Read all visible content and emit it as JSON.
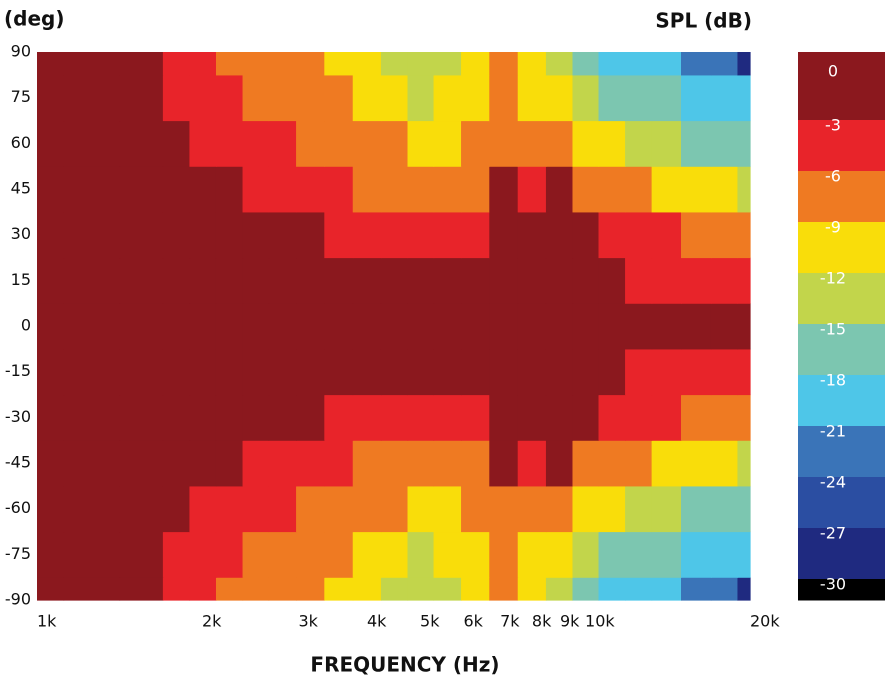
{
  "chart_data": {
    "type": "contour",
    "y_label": "(deg)",
    "x_label": "FREQUENCY (Hz)",
    "xscale": "log",
    "xlim": [
      1000,
      20000
    ],
    "ylim": [
      -90,
      90
    ],
    "xticks": [
      {
        "value": 1000,
        "label": "1k"
      },
      {
        "value": 2000,
        "label": "2k"
      },
      {
        "value": 3000,
        "label": "3k"
      },
      {
        "value": 4000,
        "label": "4k"
      },
      {
        "value": 5000,
        "label": "5k"
      },
      {
        "value": 6000,
        "label": "6k"
      },
      {
        "value": 7000,
        "label": "7k"
      },
      {
        "value": 8000,
        "label": "8k"
      },
      {
        "value": 9000,
        "label": "9k"
      },
      {
        "value": 10000,
        "label": "10k"
      },
      {
        "value": 20000,
        "label": "20k"
      }
    ],
    "yticks": [
      90,
      75,
      60,
      45,
      30,
      15,
      0,
      -15,
      -30,
      -45,
      -60,
      -75,
      -90
    ],
    "x": [
      1000,
      1250,
      1600,
      1800,
      2000,
      2250,
      2500,
      2800,
      3150,
      3550,
      4000,
      4500,
      5000,
      5600,
      6300,
      7100,
      8000,
      9000,
      10000,
      11200,
      12500,
      14000,
      16000,
      18000,
      20000
    ],
    "y": [
      -90,
      -75,
      -60,
      -45,
      -30,
      -15,
      0,
      15,
      30,
      45,
      60,
      75,
      90
    ],
    "z": [
      [
        -2.5,
        -2.7,
        -2.9,
        -3.5,
        -5.5,
        -6.2,
        -7.5,
        -8.5,
        -8.8,
        -9.5,
        -10.5,
        -12.5,
        -13.5,
        -12.5,
        -10.5,
        -8,
        -11,
        -14.5,
        -16,
        -18.3,
        -18.8,
        -19.5,
        -21.2,
        -23,
        -27.5
      ],
      [
        -2,
        -2.2,
        -2.5,
        -3.2,
        -4.5,
        -5,
        -6.1,
        -7,
        -8,
        -8.6,
        -9.5,
        -11,
        -12.5,
        -11.8,
        -9.8,
        -7.5,
        -9.2,
        -10.8,
        -13.5,
        -15.5,
        -16.5,
        -17.5,
        -19.5,
        -19.8,
        -20.5
      ],
      [
        -1.5,
        -1.7,
        -2,
        -2.8,
        -3.5,
        -4,
        -4.5,
        -5.2,
        -6.2,
        -6.8,
        -7.8,
        -8.8,
        -10.5,
        -10,
        -8.6,
        -6.2,
        -6.5,
        -6.3,
        -10,
        -11,
        -12,
        -13.5,
        -15.2,
        -16,
        -16.5
      ],
      [
        -1,
        -1.2,
        -1.4,
        -1.8,
        -2,
        -2.5,
        -3.1,
        -3.6,
        -4,
        -4.8,
        -6.2,
        -6.5,
        -8,
        -7.8,
        -6.5,
        -2.9,
        -3.3,
        -2.9,
        -6.1,
        -6.8,
        -7.8,
        -9,
        -10,
        -10.8,
        -12.2
      ],
      [
        -0.6,
        -0.7,
        -0.8,
        -1,
        -1.2,
        -1.4,
        -1.6,
        -2,
        -2.5,
        -3.1,
        -3.8,
        -4.2,
        -5.5,
        -5.2,
        -3.8,
        -1.8,
        -2,
        -1.8,
        -2.5,
        -3.3,
        -5,
        -5.5,
        -6.1,
        -6.5,
        -7.5
      ],
      [
        -0.3,
        -0.3,
        -0.4,
        -0.5,
        -0.5,
        -0.6,
        -0.7,
        -0.8,
        -1,
        -1.2,
        -1.5,
        -1.8,
        -2,
        -2,
        -1.5,
        -0.8,
        -0.9,
        -0.8,
        -1,
        -1.2,
        -3.1,
        -3.3,
        -3.5,
        -3.4,
        -3.1
      ],
      [
        0,
        0,
        0,
        0,
        0,
        0,
        0,
        0,
        0,
        0,
        0,
        0,
        0,
        0,
        0,
        0,
        0,
        0,
        0,
        0,
        0,
        0,
        0,
        0,
        0
      ],
      [
        -0.3,
        -0.3,
        -0.4,
        -0.5,
        -0.5,
        -0.6,
        -0.7,
        -0.8,
        -1,
        -1.2,
        -1.5,
        -1.8,
        -2,
        -2,
        -1.5,
        -0.8,
        -0.9,
        -0.8,
        -1,
        -1.2,
        -3.1,
        -3.3,
        -3.5,
        -3.4,
        -3.1
      ],
      [
        -0.6,
        -0.7,
        -0.8,
        -1,
        -1.2,
        -1.4,
        -1.6,
        -2,
        -2.5,
        -3.1,
        -3.8,
        -4.2,
        -5.5,
        -5.2,
        -3.8,
        -1.8,
        -2,
        -1.8,
        -2.5,
        -3.3,
        -5,
        -5.5,
        -6.1,
        -6.5,
        -7.5
      ],
      [
        -1,
        -1.2,
        -1.4,
        -1.8,
        -2,
        -2.5,
        -3.1,
        -3.6,
        -4,
        -4.8,
        -6.2,
        -6.5,
        -8,
        -7.8,
        -6.5,
        -2.9,
        -3.3,
        -2.9,
        -6.1,
        -6.8,
        -7.8,
        -9,
        -10,
        -10.8,
        -12.2
      ],
      [
        -1.5,
        -1.7,
        -2,
        -2.8,
        -3.5,
        -4,
        -4.5,
        -5.2,
        -6.2,
        -6.8,
        -7.8,
        -8.8,
        -10.5,
        -10,
        -8.6,
        -6.2,
        -6.5,
        -6.3,
        -10,
        -11,
        -12,
        -13.5,
        -15.2,
        -16,
        -16.5
      ],
      [
        -2,
        -2.2,
        -2.5,
        -3.2,
        -4.5,
        -5,
        -6.1,
        -7,
        -8,
        -8.6,
        -9.5,
        -11,
        -12.5,
        -11.8,
        -9.8,
        -7.5,
        -9.2,
        -10.8,
        -13.5,
        -15.5,
        -16.5,
        -17.5,
        -19.5,
        -19.8,
        -20.5
      ],
      [
        -2.5,
        -2.7,
        -2.9,
        -3.5,
        -5.5,
        -6.2,
        -7.5,
        -8.5,
        -8.8,
        -9.5,
        -10.5,
        -12.5,
        -13.5,
        -12.5,
        -10.5,
        -8,
        -11,
        -14.5,
        -16,
        -18.3,
        -18.8,
        -19.5,
        -21.2,
        -23,
        -27.5
      ]
    ],
    "colorbar": {
      "title": "SPL (dB)",
      "levels": [
        0,
        -3,
        -6,
        -9,
        -12,
        -15,
        -18,
        -21,
        -24,
        -27,
        -30
      ],
      "colors": [
        "#8b181e",
        "#e8242a",
        "#ef7a22",
        "#f9dd0a",
        "#c2d54b",
        "#7cc6b0",
        "#4ec6e8",
        "#3a74b8",
        "#2b4ea2",
        "#1f2a80",
        "#000000"
      ]
    }
  }
}
